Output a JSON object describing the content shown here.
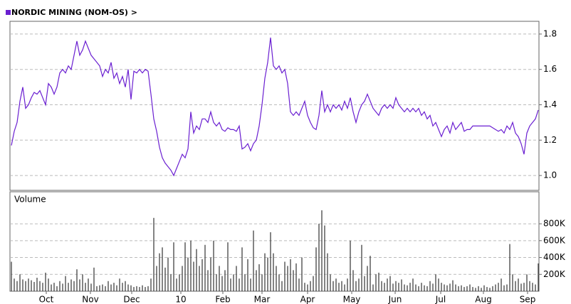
{
  "chart_data": [
    {
      "type": "line",
      "title": "NORDIC MINING (NOM-OS)  >",
      "x": [
        1,
        3,
        5,
        7,
        9,
        11,
        13,
        15,
        17,
        19,
        21,
        23,
        25,
        27,
        29,
        31,
        33,
        35,
        37,
        39,
        41,
        43,
        45,
        47,
        49,
        51,
        53,
        55,
        57,
        59,
        61,
        63,
        65,
        67,
        69,
        71,
        73,
        75,
        77,
        79,
        81,
        83,
        85,
        87,
        89,
        91,
        93,
        95,
        97,
        99,
        101,
        103,
        105,
        107,
        109,
        111,
        113,
        115,
        117,
        119,
        121,
        123,
        125,
        127,
        129,
        131,
        133,
        135,
        137,
        139,
        141,
        143,
        145,
        147,
        149,
        151,
        153,
        155,
        157,
        159,
        161,
        163,
        165,
        167,
        169,
        171,
        173,
        175,
        177,
        179,
        181,
        183,
        185,
        187,
        189,
        191,
        193,
        195,
        197,
        199,
        201,
        203,
        205,
        207,
        209,
        211,
        213,
        215,
        217,
        219,
        221,
        223,
        225,
        227,
        229,
        231,
        233,
        235,
        237,
        239,
        241,
        243,
        245,
        247,
        249,
        251,
        253,
        255,
        257,
        259,
        261,
        263,
        265,
        267,
        269,
        271,
        273,
        275,
        277,
        279,
        281,
        283,
        285,
        287,
        289,
        291,
        293,
        295,
        297,
        299,
        301,
        303,
        305,
        307,
        309,
        311,
        313,
        315,
        317,
        319,
        321,
        323,
        325,
        327,
        329,
        331,
        333,
        335,
        337,
        339,
        341,
        343,
        345,
        347,
        349,
        351,
        353,
        355,
        357,
        359,
        361,
        363,
        365,
        367,
        369,
        371
      ],
      "series": [
        {
          "color": "#6a1fd1",
          "values": [
            1.17,
            1.25,
            1.3,
            1.42,
            1.5,
            1.38,
            1.4,
            1.44,
            1.47,
            1.46,
            1.48,
            1.44,
            1.4,
            1.52,
            1.5,
            1.46,
            1.5,
            1.58,
            1.6,
            1.58,
            1.62,
            1.6,
            1.68,
            1.76,
            1.68,
            1.71,
            1.76,
            1.72,
            1.68,
            1.66,
            1.64,
            1.62,
            1.56,
            1.6,
            1.58,
            1.64,
            1.55,
            1.58,
            1.52,
            1.56,
            1.5,
            1.6,
            1.43,
            1.59,
            1.58,
            1.6,
            1.58,
            1.6,
            1.59,
            1.46,
            1.32,
            1.25,
            1.16,
            1.1,
            1.07,
            1.05,
            1.03,
            1.0,
            1.04,
            1.08,
            1.12,
            1.1,
            1.15,
            1.36,
            1.24,
            1.28,
            1.26,
            1.32,
            1.32,
            1.3,
            1.36,
            1.3,
            1.28,
            1.3,
            1.26,
            1.25,
            1.27,
            1.26,
            1.26,
            1.25,
            1.28,
            1.15,
            1.16,
            1.18,
            1.14,
            1.18,
            1.2,
            1.28,
            1.4,
            1.55,
            1.64,
            1.78,
            1.62,
            1.6,
            1.62,
            1.58,
            1.6,
            1.52,
            1.36,
            1.34,
            1.36,
            1.34,
            1.38,
            1.42,
            1.34,
            1.3,
            1.27,
            1.26,
            1.34,
            1.48,
            1.36,
            1.4,
            1.36,
            1.4,
            1.38,
            1.4,
            1.37,
            1.42,
            1.38,
            1.44,
            1.36,
            1.3,
            1.36,
            1.4,
            1.42,
            1.46,
            1.42,
            1.38,
            1.36,
            1.34,
            1.38,
            1.4,
            1.38,
            1.4,
            1.38,
            1.44,
            1.4,
            1.38,
            1.36,
            1.38,
            1.36,
            1.38,
            1.36,
            1.38,
            1.34,
            1.36,
            1.32,
            1.34,
            1.28,
            1.3,
            1.26,
            1.22,
            1.26,
            1.28,
            1.24,
            1.3,
            1.26,
            1.28,
            1.3,
            1.25,
            1.26,
            1.26,
            1.28,
            1.28,
            1.28,
            1.28,
            1.28,
            1.28,
            1.28,
            1.27,
            1.26,
            1.25,
            1.26,
            1.24,
            1.28,
            1.26,
            1.3,
            1.24,
            1.22,
            1.18,
            1.12,
            1.24,
            1.28,
            1.3,
            1.32,
            1.37
          ]
        }
      ],
      "xlim": [
        0,
        371.5
      ],
      "ylim": [
        0.916,
        1.872
      ],
      "yticks": [
        {
          "value": 1,
          "label": "1.0"
        },
        {
          "value": 1.2,
          "label": "1.2"
        },
        {
          "value": 1.4,
          "label": "1.4"
        },
        {
          "value": 1.6,
          "label": "1.6"
        },
        {
          "value": 1.8,
          "label": "1.8"
        }
      ],
      "grid": true
    },
    {
      "type": "bar",
      "title": "Volume",
      "x": [
        1,
        3,
        5,
        7,
        9,
        11,
        13,
        15,
        17,
        19,
        21,
        23,
        25,
        27,
        29,
        31,
        33,
        35,
        37,
        39,
        41,
        43,
        45,
        47,
        49,
        51,
        53,
        55,
        57,
        59,
        61,
        63,
        65,
        67,
        69,
        71,
        73,
        75,
        77,
        79,
        81,
        83,
        85,
        87,
        89,
        91,
        93,
        95,
        97,
        99,
        101,
        103,
        105,
        107,
        109,
        111,
        113,
        115,
        117,
        119,
        121,
        123,
        125,
        127,
        129,
        131,
        133,
        135,
        137,
        139,
        141,
        143,
        145,
        147,
        149,
        151,
        153,
        155,
        157,
        159,
        161,
        163,
        165,
        167,
        169,
        171,
        173,
        175,
        177,
        179,
        181,
        183,
        185,
        187,
        189,
        191,
        193,
        195,
        197,
        199,
        201,
        203,
        205,
        207,
        209,
        211,
        213,
        215,
        217,
        219,
        221,
        223,
        225,
        227,
        229,
        231,
        233,
        235,
        237,
        239,
        241,
        243,
        245,
        247,
        249,
        251,
        253,
        255,
        257,
        259,
        261,
        263,
        265,
        267,
        269,
        271,
        273,
        275,
        277,
        279,
        281,
        283,
        285,
        287,
        289,
        291,
        293,
        295,
        297,
        299,
        301,
        303,
        305,
        307,
        309,
        311,
        313,
        315,
        317,
        319,
        321,
        323,
        325,
        327,
        329,
        331,
        333,
        335,
        337,
        339,
        341,
        343,
        345,
        347,
        349,
        351,
        353,
        355,
        357,
        359,
        361,
        363,
        365,
        367,
        369,
        371
      ],
      "color": "#333333",
      "values": [
        350000,
        150000,
        120000,
        200000,
        140000,
        120000,
        150000,
        130000,
        110000,
        160000,
        120000,
        100000,
        220000,
        150000,
        80000,
        100000,
        60000,
        120000,
        90000,
        180000,
        100000,
        140000,
        120000,
        260000,
        140000,
        200000,
        100000,
        150000,
        90000,
        280000,
        60000,
        70000,
        80000,
        60000,
        120000,
        80000,
        100000,
        70000,
        150000,
        100000,
        120000,
        80000,
        70000,
        50000,
        60000,
        50000,
        70000,
        50000,
        60000,
        150000,
        870000,
        300000,
        450000,
        520000,
        280000,
        400000,
        200000,
        580000,
        150000,
        200000,
        300000,
        580000,
        400000,
        600000,
        350000,
        500000,
        300000,
        380000,
        550000,
        250000,
        400000,
        600000,
        200000,
        300000,
        180000,
        250000,
        580000,
        150000,
        200000,
        300000,
        150000,
        520000,
        200000,
        380000,
        150000,
        720000,
        250000,
        320000,
        200000,
        450000,
        400000,
        700000,
        450000,
        300000,
        200000,
        120000,
        350000,
        300000,
        380000,
        250000,
        330000,
        150000,
        400000,
        100000,
        80000,
        120000,
        180000,
        520000,
        800000,
        960000,
        780000,
        450000,
        200000,
        120000,
        150000,
        100000,
        120000,
        80000,
        150000,
        600000,
        250000,
        120000,
        150000,
        550000,
        180000,
        300000,
        420000,
        80000,
        200000,
        220000,
        120000,
        100000,
        150000,
        180000,
        90000,
        120000,
        100000,
        140000,
        80000,
        70000,
        100000,
        150000,
        80000,
        60000,
        100000,
        70000,
        60000,
        120000,
        90000,
        200000,
        150000,
        100000,
        80000,
        70000,
        90000,
        130000,
        80000,
        60000,
        70000,
        50000,
        60000,
        80000,
        50000,
        40000,
        60000,
        40000,
        70000,
        50000,
        40000,
        60000,
        80000,
        100000,
        150000,
        70000,
        80000,
        560000,
        200000,
        120000,
        150000,
        90000,
        100000,
        200000,
        120000,
        100000,
        80000,
        330000
      ],
      "xlim": [
        0,
        371.5
      ],
      "xticks": [
        {
          "value": 25.5,
          "label": "Oct"
        },
        {
          "value": 56.5,
          "label": "Nov"
        },
        {
          "value": 85.5,
          "label": "Dec"
        },
        {
          "value": 120,
          "label": "10"
        },
        {
          "value": 149.5,
          "label": "Feb"
        },
        {
          "value": 177,
          "label": "Mar"
        },
        {
          "value": 209,
          "label": "Apr"
        },
        {
          "value": 240,
          "label": "May"
        },
        {
          "value": 270.5,
          "label": "Jun"
        },
        {
          "value": 302.5,
          "label": "Jul"
        },
        {
          "value": 332.5,
          "label": "Aug"
        },
        {
          "value": 363.5,
          "label": "Sep"
        }
      ],
      "ylim": [
        0,
        1180000
      ],
      "yticks": [
        {
          "value": 200000,
          "label": "200K"
        },
        {
          "value": 400000,
          "label": "400K"
        },
        {
          "value": 600000,
          "label": "600K"
        },
        {
          "value": 800000,
          "label": "800K"
        }
      ],
      "grid": true
    }
  ]
}
